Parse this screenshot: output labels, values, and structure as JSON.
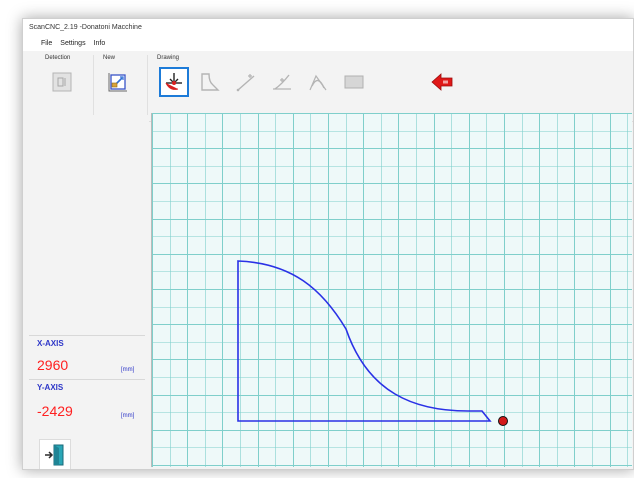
{
  "window": {
    "title": "ScanCNC_2.19 -Donatoni Macchine"
  },
  "menu": {
    "items": [
      "File",
      "Settings",
      "Info"
    ]
  },
  "ribbon": {
    "groups": {
      "detection": "Detection",
      "new": "New",
      "drawing": "Drawing"
    },
    "buttons": [
      {
        "icon": "detection-icon",
        "state": "disabled"
      },
      {
        "icon": "new-drawing-icon",
        "state": "enabled"
      },
      {
        "icon": "cut-point-icon",
        "state": "active"
      },
      {
        "icon": "polyline-icon",
        "state": "disabled"
      },
      {
        "icon": "line-point-icon",
        "state": "disabled"
      },
      {
        "icon": "arc-point-icon",
        "state": "disabled"
      },
      {
        "icon": "curve-icon",
        "state": "disabled"
      },
      {
        "icon": "rectangle-icon",
        "state": "disabled"
      },
      {
        "icon": "back-arrow-icon",
        "state": "enabled"
      }
    ]
  },
  "axes": {
    "x_label": "X-AXIS",
    "x_value": "2960",
    "x_unit": "[mm]",
    "y_label": "Y-AXIS",
    "y_value": "-2429",
    "y_unit": "[mm]"
  },
  "colors": {
    "accent_blue": "#2d36c8",
    "value_red": "#ff2020",
    "grid_bg": "#eef9f9",
    "grid_line": "#7fcfcb",
    "shape_stroke": "#2a31e6",
    "cursor_red": "#d21a1a"
  }
}
